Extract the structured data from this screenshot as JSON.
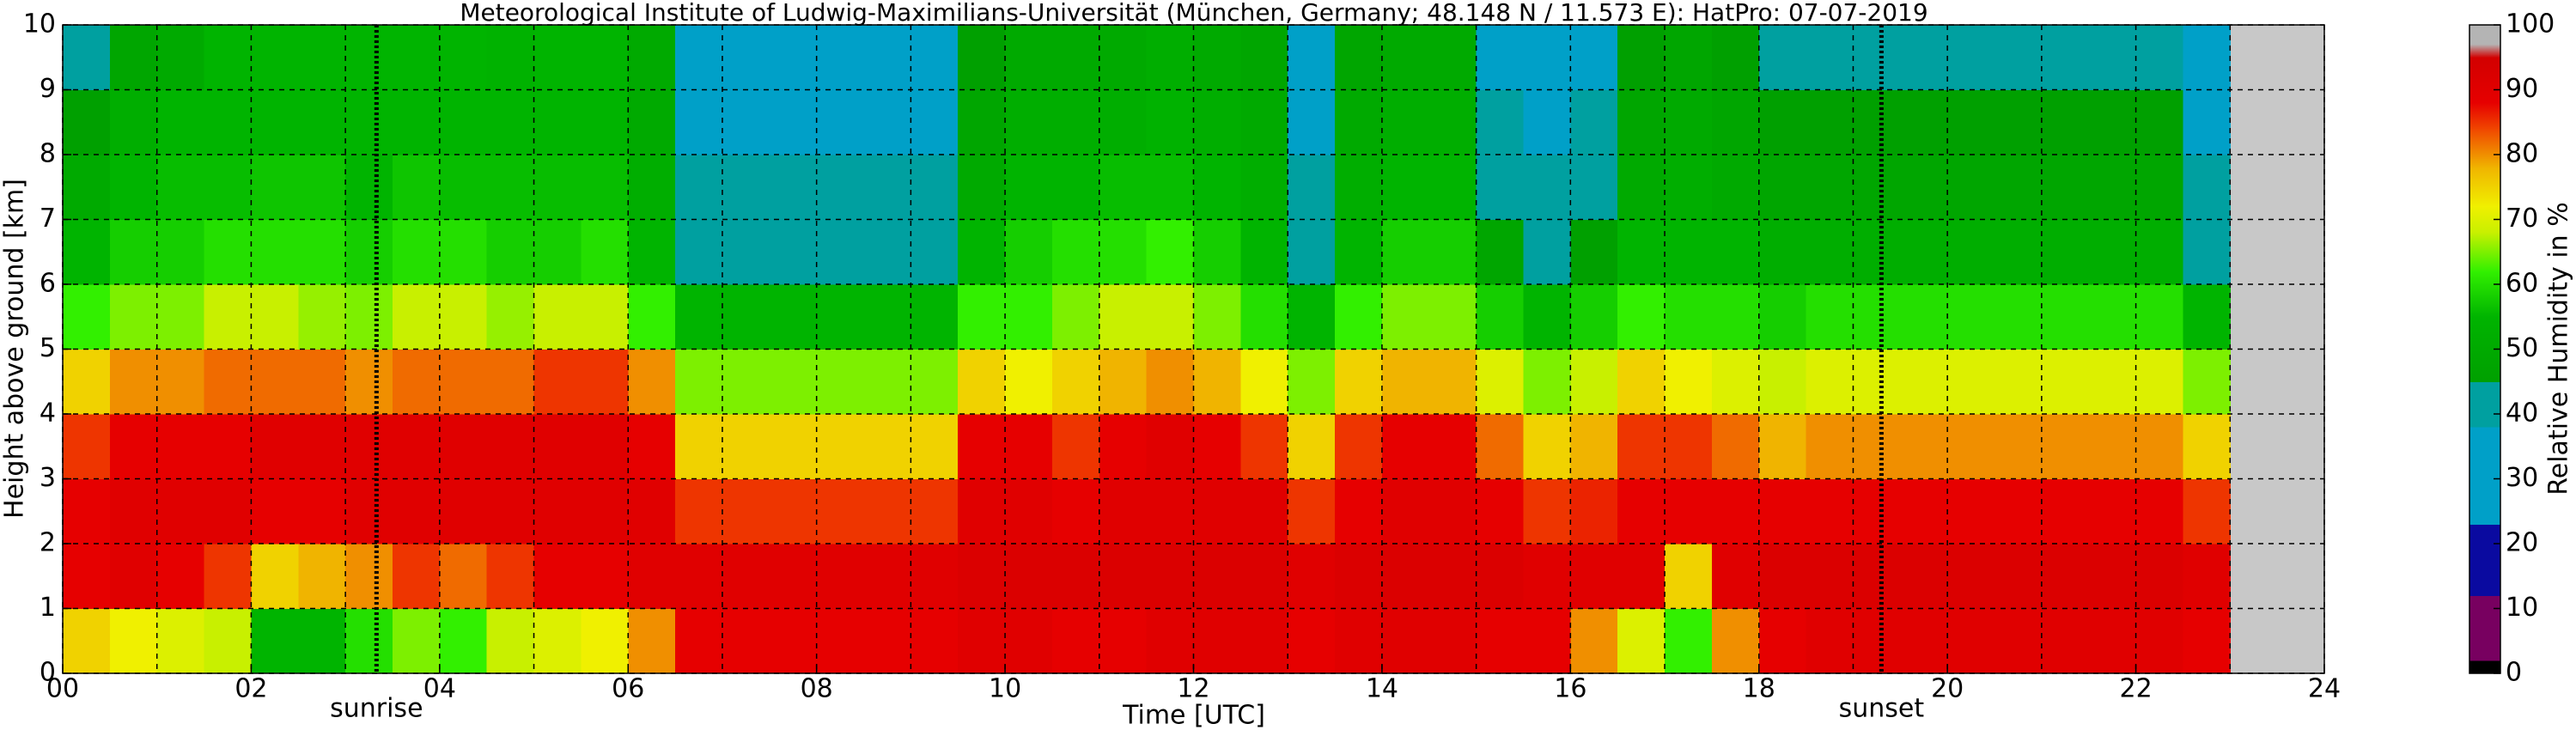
{
  "chart_data": {
    "type": "heatmap",
    "title": "Meteorological Institute of Ludwig-Maximilians-Universität (München, Germany; 48.148 N / 11.573 E):    HatPro: 07-07-2019",
    "x_label": "Time [UTC]",
    "y_label": "Height above ground [km]",
    "colorbar_label": "Relative Humidity in %",
    "xlim": [
      0,
      24
    ],
    "ylim": [
      0,
      10
    ],
    "xticks": [
      {
        "value": 0,
        "label": "00"
      },
      {
        "value": 2,
        "label": "02"
      },
      {
        "value": 4,
        "label": "04"
      },
      {
        "value": 6,
        "label": "06"
      },
      {
        "value": 8,
        "label": "08"
      },
      {
        "value": 10,
        "label": "10"
      },
      {
        "value": 12,
        "label": "12"
      },
      {
        "value": 14,
        "label": "14"
      },
      {
        "value": 16,
        "label": "16"
      },
      {
        "value": 18,
        "label": "18"
      },
      {
        "value": 20,
        "label": "20"
      },
      {
        "value": 22,
        "label": "22"
      },
      {
        "value": 24,
        "label": "24"
      }
    ],
    "xminorticks": [
      1,
      3,
      5,
      7,
      9,
      11,
      13,
      15,
      17,
      19,
      21,
      23
    ],
    "yticks": [
      0,
      1,
      2,
      3,
      4,
      5,
      6,
      7,
      8,
      9,
      10
    ],
    "clim": [
      0,
      100
    ],
    "cticks": [
      0,
      10,
      20,
      30,
      40,
      50,
      60,
      70,
      80,
      90,
      100
    ],
    "grid": true,
    "annotations": [
      {
        "text": "sunrise",
        "x": 3.33
      },
      {
        "text": "sunset",
        "x": 19.3
      }
    ],
    "colorscale": [
      {
        "value": 0,
        "color": "#000000"
      },
      {
        "value": 2,
        "color": "#000000"
      },
      {
        "value": 2,
        "color": "#780060"
      },
      {
        "value": 12,
        "color": "#780060"
      },
      {
        "value": 12,
        "color": "#0a0aa0"
      },
      {
        "value": 23,
        "color": "#0a0aa0"
      },
      {
        "value": 23,
        "color": "#00a0c8"
      },
      {
        "value": 38,
        "color": "#00a0c8"
      },
      {
        "value": 38,
        "color": "#00a0a0"
      },
      {
        "value": 45,
        "color": "#00a0a0"
      },
      {
        "value": 45,
        "color": "#00a000"
      },
      {
        "value": 55,
        "color": "#00b400"
      },
      {
        "value": 62,
        "color": "#32f000"
      },
      {
        "value": 68,
        "color": "#c8f000"
      },
      {
        "value": 72,
        "color": "#f0f000"
      },
      {
        "value": 78,
        "color": "#f0b400"
      },
      {
        "value": 84,
        "color": "#f04600"
      },
      {
        "value": 88,
        "color": "#e60000"
      },
      {
        "value": 95,
        "color": "#d20000"
      },
      {
        "value": 97,
        "color": "#b4b4b4"
      },
      {
        "value": 100,
        "color": "#b4b4b4"
      }
    ],
    "x_bins": [
      0,
      0.5,
      1,
      1.5,
      2,
      2.5,
      3,
      3.5,
      4,
      4.5,
      5,
      5.5,
      6,
      6.5,
      7,
      7.5,
      8,
      8.5,
      9,
      9.5,
      10,
      10.5,
      11,
      11.5,
      12,
      12.5,
      13,
      13.5,
      14,
      14.5,
      15,
      15.5,
      16,
      16.5,
      17,
      17.5,
      18,
      18.5,
      19,
      19.5,
      20,
      20.5,
      21,
      21.5,
      22,
      22.5,
      23
    ],
    "y_bins": [
      0,
      1,
      2,
      3,
      4,
      5,
      6,
      7,
      8,
      9,
      10
    ],
    "z": [
      [
        75,
        72,
        70,
        68,
        55,
        55,
        60,
        65,
        62,
        68,
        70,
        72,
        80,
        88,
        88,
        88,
        88,
        88,
        88,
        90,
        90,
        88,
        88,
        90,
        90,
        90,
        88,
        90,
        90,
        90,
        88,
        88,
        80,
        70,
        62,
        80,
        88,
        90,
        90,
        90,
        90,
        90,
        90,
        90,
        90,
        88
      ],
      [
        88,
        90,
        88,
        85,
        75,
        78,
        80,
        85,
        82,
        85,
        88,
        88,
        90,
        90,
        90,
        90,
        90,
        90,
        90,
        92,
        92,
        92,
        92,
        92,
        92,
        92,
        90,
        92,
        92,
        92,
        92,
        90,
        90,
        90,
        75,
        90,
        92,
        92,
        92,
        92,
        92,
        92,
        92,
        92,
        92,
        90
      ],
      [
        88,
        90,
        90,
        90,
        88,
        88,
        90,
        90,
        90,
        90,
        90,
        90,
        90,
        85,
        85,
        85,
        85,
        85,
        85,
        90,
        90,
        88,
        90,
        90,
        90,
        90,
        85,
        88,
        90,
        90,
        88,
        85,
        86,
        88,
        88,
        88,
        88,
        88,
        88,
        88,
        88,
        88,
        88,
        88,
        88,
        85
      ],
      [
        85,
        88,
        88,
        88,
        90,
        90,
        90,
        90,
        90,
        90,
        90,
        90,
        88,
        75,
        75,
        75,
        75,
        75,
        75,
        88,
        88,
        85,
        88,
        90,
        88,
        85,
        75,
        85,
        88,
        88,
        82,
        75,
        78,
        85,
        85,
        82,
        78,
        80,
        80,
        80,
        80,
        80,
        80,
        80,
        80,
        75
      ],
      [
        75,
        80,
        80,
        82,
        82,
        82,
        80,
        82,
        82,
        82,
        85,
        85,
        80,
        65,
        65,
        65,
        65,
        65,
        65,
        75,
        72,
        75,
        78,
        80,
        78,
        72,
        65,
        75,
        78,
        78,
        70,
        65,
        68,
        75,
        72,
        70,
        68,
        70,
        70,
        70,
        70,
        70,
        70,
        70,
        70,
        65
      ],
      [
        62,
        65,
        65,
        68,
        68,
        66,
        65,
        68,
        68,
        66,
        68,
        68,
        62,
        55,
        55,
        55,
        55,
        55,
        55,
        62,
        62,
        65,
        68,
        68,
        65,
        60,
        55,
        62,
        65,
        65,
        58,
        55,
        58,
        62,
        60,
        60,
        58,
        60,
        60,
        60,
        60,
        60,
        60,
        60,
        60,
        55
      ],
      [
        55,
        58,
        58,
        60,
        60,
        60,
        58,
        60,
        60,
        58,
        58,
        60,
        55,
        40,
        40,
        40,
        40,
        40,
        40,
        55,
        58,
        60,
        60,
        62,
        58,
        55,
        40,
        55,
        58,
        58,
        48,
        40,
        45,
        55,
        55,
        55,
        52,
        52,
        52,
        52,
        52,
        52,
        52,
        52,
        52,
        40
      ],
      [
        50,
        55,
        56,
        56,
        57,
        57,
        55,
        57,
        56,
        56,
        56,
        56,
        52,
        38,
        38,
        38,
        38,
        38,
        38,
        50,
        55,
        55,
        56,
        56,
        55,
        52,
        38,
        52,
        55,
        55,
        42,
        38,
        40,
        50,
        52,
        50,
        48,
        48,
        48,
        48,
        48,
        48,
        48,
        48,
        48,
        38
      ],
      [
        45,
        52,
        55,
        55,
        55,
        55,
        55,
        55,
        55,
        55,
        55,
        55,
        50,
        35,
        35,
        35,
        35,
        35,
        35,
        48,
        52,
        52,
        52,
        54,
        52,
        50,
        35,
        50,
        52,
        52,
        38,
        35,
        38,
        48,
        50,
        48,
        45,
        45,
        45,
        45,
        45,
        45,
        45,
        45,
        45,
        35
      ],
      [
        42,
        48,
        50,
        55,
        55,
        55,
        55,
        55,
        55,
        54,
        55,
        55,
        50,
        32,
        32,
        32,
        32,
        32,
        32,
        45,
        50,
        50,
        50,
        52,
        50,
        48,
        32,
        48,
        50,
        50,
        35,
        32,
        35,
        45,
        48,
        45,
        40,
        40,
        40,
        40,
        40,
        40,
        40,
        40,
        40,
        32
      ]
    ]
  }
}
